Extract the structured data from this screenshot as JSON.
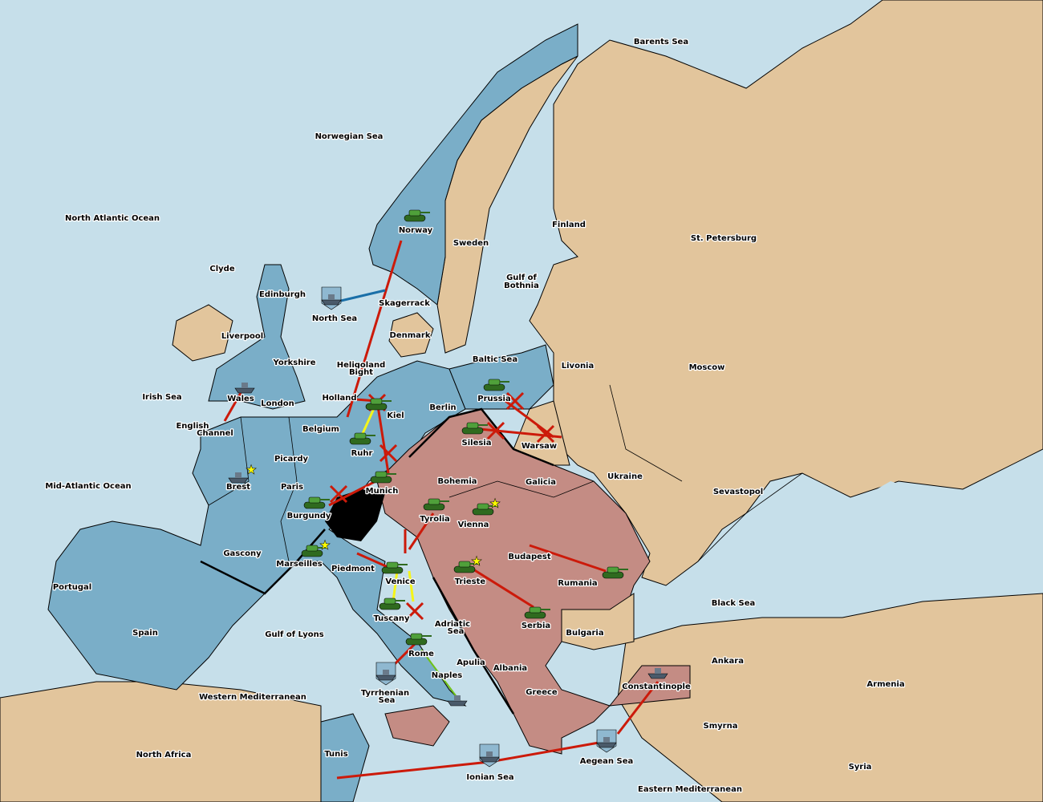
{
  "colors": {
    "sea": "#c6dfea",
    "neutral_land": "#e2c59c",
    "power_blue": "#7aaec8",
    "power_pink": "#c48c84",
    "order_arrow": "#cc1a0a",
    "support_arrow": "#f5f51a",
    "convoy_arrow": "#6fc21a",
    "unit_green": "#3f8a2a"
  },
  "provinces": [
    "Barents Sea",
    "Norwegian Sea",
    "North Atlantic Ocean",
    "Norway",
    "Sweden",
    "Finland",
    "St. Petersburg",
    "Gulf of",
    "Bothnia",
    "Clyde",
    "Edinburgh",
    "North Sea",
    "Skagerrack",
    "Liverpool",
    "Denmark",
    "Baltic Sea",
    "Livonia",
    "Moscow",
    "Yorkshire",
    "Heligoland",
    "Bight",
    "Irish Sea",
    "Wales",
    "London",
    "Holland",
    "Kiel",
    "Berlin",
    "Prussia",
    "English",
    "Channel",
    "Belgium",
    "Silesia",
    "Warsaw",
    "Ruhr",
    "Picardy",
    "Ukraine",
    "Brest",
    "Paris",
    "Mid-Atlantic Ocean",
    "Bohemia",
    "Galicia",
    "Munich",
    "Sevastopol",
    "Burgundy",
    "Tyrolia",
    "Vienna",
    "Gascony",
    "Budapest",
    "Marseilles",
    "Piedmont",
    "Venice",
    "Trieste",
    "Rumania",
    "Portugal",
    "Black Sea",
    "Tuscany",
    "Adriatic",
    "Sea",
    "Serbia",
    "Spain",
    "Gulf of Lyons",
    "Bulgaria",
    "Rome",
    "Apulia",
    "Ankara",
    "Albania",
    "Naples",
    "Armenia",
    "Constantinople",
    "Tyrrhenian",
    "Sea",
    "Western Mediterranean",
    "Greece",
    "Smyrna",
    "North Africa",
    "Tunis",
    "Aegean Sea",
    "Ionian Sea",
    "Syria",
    "Eastern Mediterranean"
  ],
  "units": {
    "armies": [
      "Norway",
      "Kiel",
      "Ruhr",
      "Munich",
      "Burgundy",
      "Marseilles",
      "Prussia",
      "Silesia",
      "Tyrolia",
      "Vienna",
      "Venice",
      "Tuscany",
      "Rome",
      "Trieste",
      "Serbia",
      "Rumania"
    ],
    "fleets": [
      "North Sea",
      "Wales",
      "Brest",
      "Tyrrhenian Sea",
      "Naples",
      "Ionian Sea",
      "Aegean Sea",
      "Constantinople"
    ]
  },
  "supply_center_stars": [
    "Brest",
    "Marseilles",
    "Vienna",
    "Trieste"
  ]
}
